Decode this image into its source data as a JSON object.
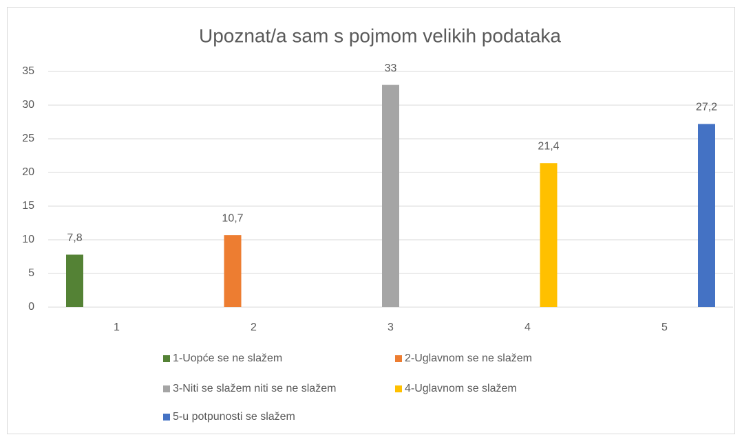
{
  "chart_data": {
    "type": "bar",
    "title": "Upoznat/a sam s pojmom velikih podataka",
    "categories": [
      "1",
      "2",
      "3",
      "4",
      "5"
    ],
    "series": [
      {
        "name": "1-Uopće se ne slažem",
        "color": "#548235",
        "values": [
          7.8,
          null,
          null,
          null,
          null
        ],
        "value_labels": [
          "7,8",
          null,
          null,
          null,
          null
        ]
      },
      {
        "name": "2-Uglavnom se ne slažem",
        "color": "#ed7d31",
        "values": [
          null,
          10.7,
          null,
          null,
          null
        ],
        "value_labels": [
          null,
          "10,7",
          null,
          null,
          null
        ]
      },
      {
        "name": "3-Niti se slažem niti se ne slažem",
        "color": "#a5a5a5",
        "values": [
          null,
          null,
          33,
          null,
          null
        ],
        "value_labels": [
          null,
          null,
          "33",
          null,
          null
        ]
      },
      {
        "name": "4-Uglavnom se slažem",
        "color": "#ffc000",
        "values": [
          null,
          null,
          null,
          21.4,
          null
        ],
        "value_labels": [
          null,
          null,
          null,
          "21,4",
          null
        ]
      },
      {
        "name": "5-u potpunosti se slažem",
        "color": "#4472c4",
        "values": [
          null,
          null,
          null,
          null,
          27.2
        ],
        "value_labels": [
          null,
          null,
          null,
          null,
          "27,2"
        ]
      }
    ],
    "ylim": [
      0,
      35
    ],
    "yticks": [
      0,
      5,
      10,
      15,
      20,
      25,
      30,
      35
    ],
    "grid": true,
    "legend": "bottom"
  }
}
